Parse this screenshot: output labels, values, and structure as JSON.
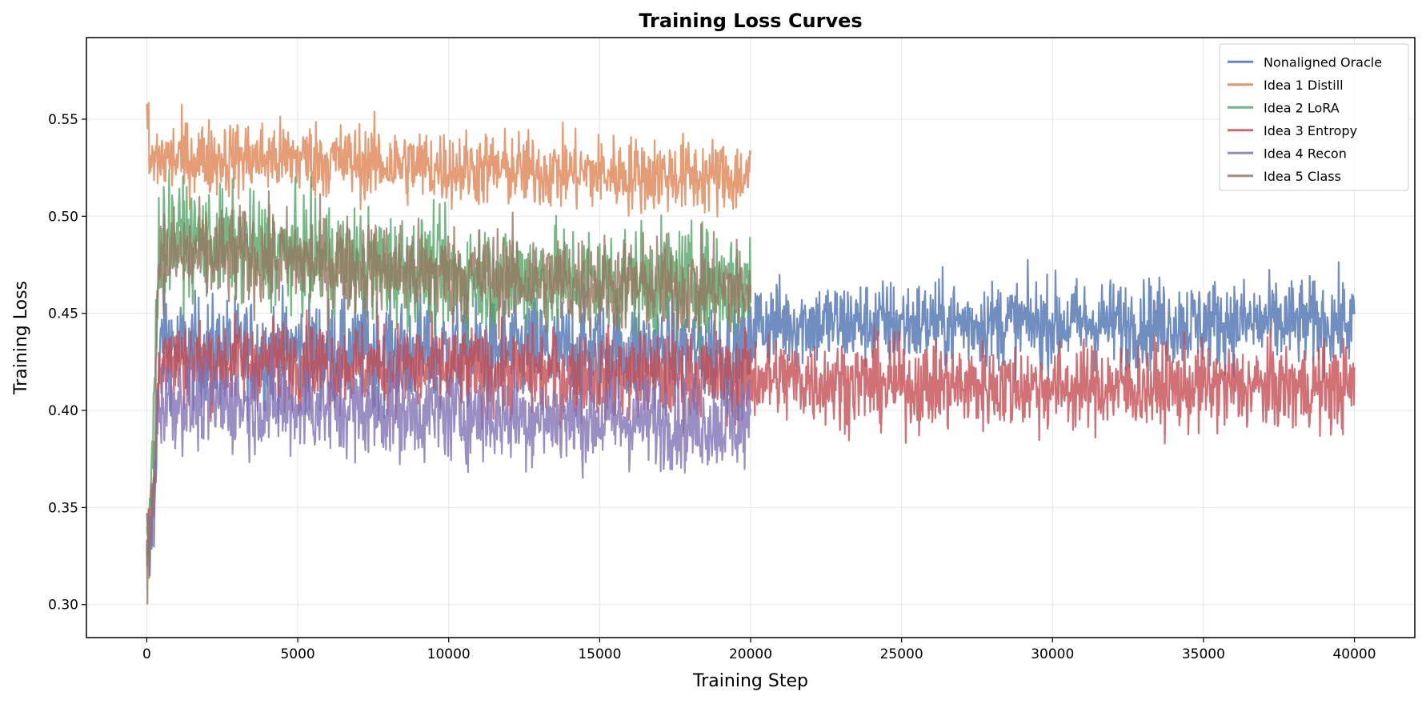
{
  "chart_data": {
    "type": "line",
    "title": "Training Loss Curves",
    "xlabel": "Training Step",
    "ylabel": "Training Loss",
    "xlim": [
      -2000,
      42000
    ],
    "ylim": [
      0.283,
      0.592
    ],
    "xticks": [
      0,
      5000,
      10000,
      15000,
      20000,
      25000,
      30000,
      35000,
      40000
    ],
    "yticks": [
      0.3,
      0.35,
      0.4,
      0.45,
      0.5,
      0.55
    ],
    "ytick_labels": [
      "0.30",
      "0.35",
      "0.40",
      "0.45",
      "0.50",
      "0.55"
    ],
    "grid": true,
    "legend_position": "top-right",
    "series": [
      {
        "name": "Nonaligned Oracle",
        "color": "#4c72b0",
        "steps": [
          0,
          40000
        ],
        "warmup_end": 350,
        "points": [
          [
            0,
            0.34
          ],
          [
            100,
            0.32
          ],
          [
            250,
            0.37
          ],
          [
            500,
            0.44
          ],
          [
            1000,
            0.43
          ],
          [
            5000,
            0.43
          ],
          [
            10000,
            0.43
          ],
          [
            15000,
            0.43
          ],
          [
            20000,
            0.43
          ],
          [
            20100,
            0.445
          ],
          [
            25000,
            0.445
          ],
          [
            30000,
            0.445
          ],
          [
            35000,
            0.445
          ],
          [
            40000,
            0.445
          ]
        ],
        "spread": [
          [
            0,
            0.01
          ],
          [
            350,
            0.02
          ],
          [
            20000,
            0.02
          ],
          [
            20100,
            0.016
          ],
          [
            40000,
            0.016
          ]
        ]
      },
      {
        "name": "Idea 1 Distill",
        "color": "#dd8452",
        "steps": [
          0,
          20000
        ],
        "warmup_end": 200,
        "points": [
          [
            0,
            0.555
          ],
          [
            100,
            0.525
          ],
          [
            300,
            0.53
          ],
          [
            5000,
            0.53
          ],
          [
            10000,
            0.525
          ],
          [
            15000,
            0.522
          ],
          [
            20000,
            0.52
          ]
        ],
        "spread": [
          [
            0,
            0.014
          ],
          [
            20000,
            0.014
          ]
        ]
      },
      {
        "name": "Idea 2 LoRA",
        "color": "#55a868",
        "steps": [
          0,
          20000
        ],
        "warmup_end": 300,
        "points": [
          [
            0,
            0.33
          ],
          [
            200,
            0.38
          ],
          [
            400,
            0.49
          ],
          [
            5000,
            0.48
          ],
          [
            10000,
            0.47
          ],
          [
            15000,
            0.467
          ],
          [
            20000,
            0.465
          ]
        ],
        "spread": [
          [
            0,
            0.02
          ],
          [
            20000,
            0.02
          ]
        ]
      },
      {
        "name": "Idea 3 Entropy",
        "color": "#c44e52",
        "steps": [
          0,
          40000
        ],
        "warmup_end": 300,
        "points": [
          [
            0,
            0.33
          ],
          [
            200,
            0.35
          ],
          [
            400,
            0.425
          ],
          [
            5000,
            0.425
          ],
          [
            10000,
            0.42
          ],
          [
            15000,
            0.418
          ],
          [
            20000,
            0.417
          ],
          [
            25000,
            0.413
          ],
          [
            30000,
            0.412
          ],
          [
            35000,
            0.412
          ],
          [
            40000,
            0.412
          ]
        ],
        "spread": [
          [
            0,
            0.016
          ],
          [
            40000,
            0.016
          ]
        ]
      },
      {
        "name": "Idea 4 Recon",
        "color": "#8172b3",
        "steps": [
          0,
          20000
        ],
        "warmup_end": 300,
        "points": [
          [
            0,
            0.33
          ],
          [
            200,
            0.34
          ],
          [
            400,
            0.405
          ],
          [
            5000,
            0.402
          ],
          [
            10000,
            0.398
          ],
          [
            15000,
            0.395
          ],
          [
            20000,
            0.393
          ]
        ],
        "spread": [
          [
            0,
            0.017
          ],
          [
            20000,
            0.017
          ]
        ]
      },
      {
        "name": "Idea 5 Class",
        "color": "#937860",
        "steps": [
          0,
          20000
        ],
        "warmup_end": 300,
        "points": [
          [
            0,
            0.32
          ],
          [
            200,
            0.36
          ],
          [
            400,
            0.48
          ],
          [
            5000,
            0.477
          ],
          [
            10000,
            0.47
          ],
          [
            15000,
            0.465
          ],
          [
            20000,
            0.462
          ]
        ],
        "spread": [
          [
            0,
            0.018
          ],
          [
            20000,
            0.018
          ]
        ]
      }
    ]
  }
}
